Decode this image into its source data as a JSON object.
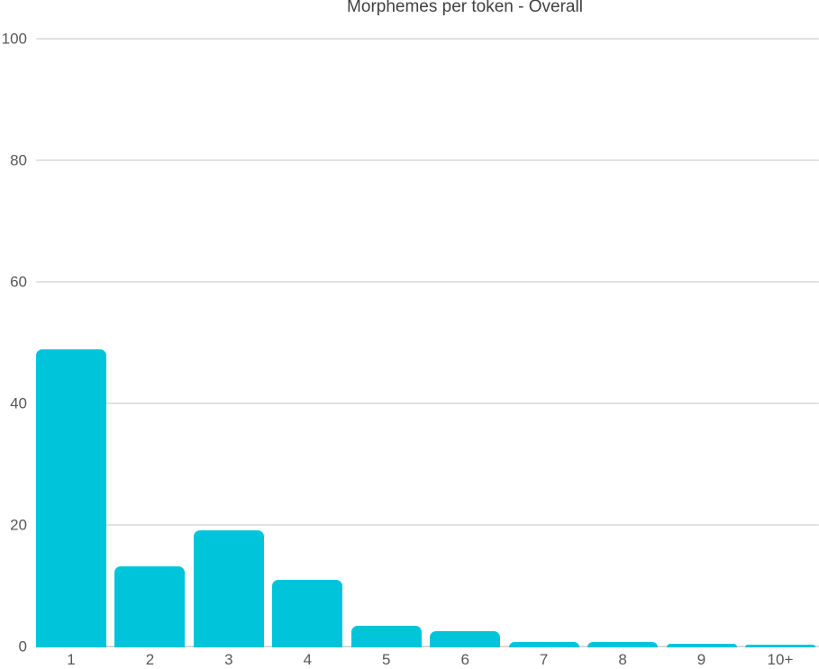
{
  "chart_data": {
    "type": "bar",
    "title": "Morphemes per token - Overall",
    "categories": [
      "1",
      "2",
      "3",
      "4",
      "5",
      "6",
      "7",
      "8",
      "9",
      "10+"
    ],
    "values": [
      48.8,
      13.2,
      19.1,
      10.9,
      3.4,
      2.5,
      0.8,
      0.8,
      0.5,
      0.3
    ],
    "xlabel": "",
    "ylabel": "",
    "ylim": [
      0,
      100
    ],
    "yticks": [
      0,
      20,
      40,
      60,
      80,
      100
    ],
    "grid": true,
    "legend": false,
    "colors": {
      "bar": "#00c5da",
      "gridline": "#e1e1e1",
      "axis_line": "#d9d9d9",
      "tick_label": "#585858",
      "title": "#414141",
      "background": "#ffffff"
    }
  }
}
